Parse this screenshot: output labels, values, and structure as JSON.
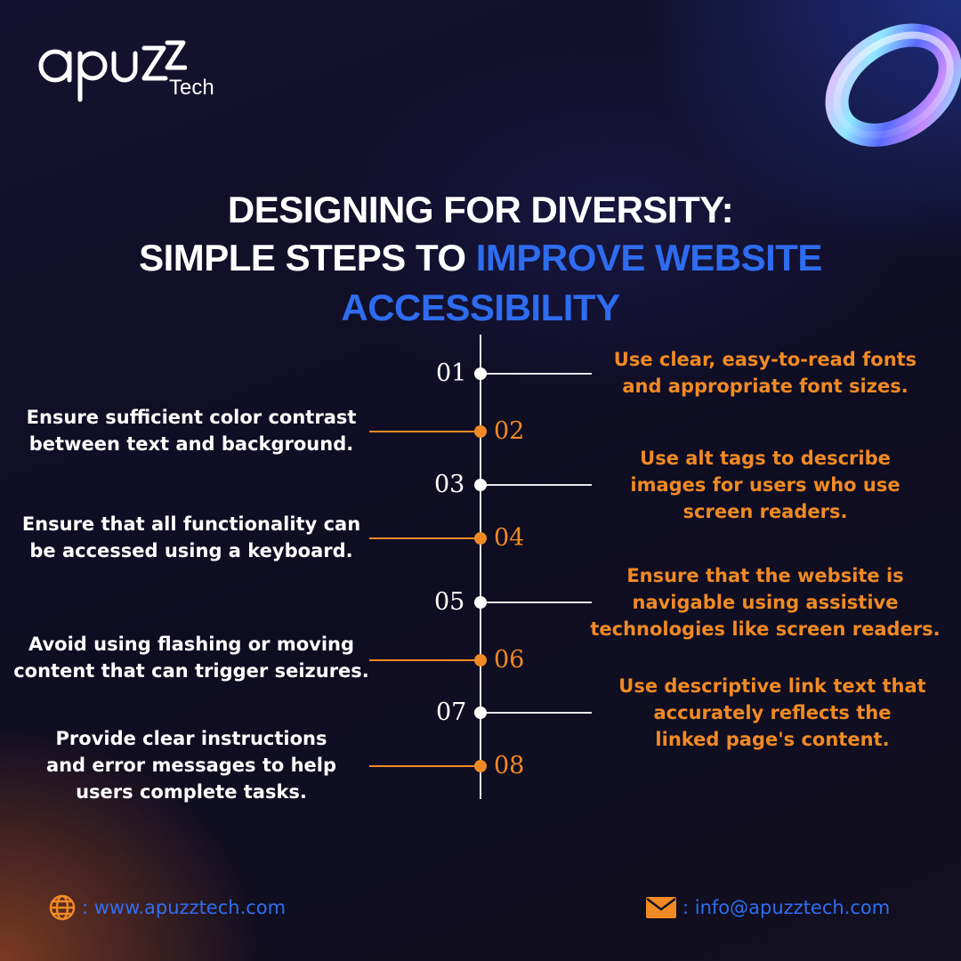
{
  "logo": {
    "wordmark": "apuzz",
    "sub": "Tech"
  },
  "headline": {
    "line1": "DESIGNING FOR DIVERSITY:",
    "line2_prefix": "SIMPLE STEPS TO ",
    "line2_accent": "IMPROVE WEBSITE ACCESSIBILITY"
  },
  "steps": [
    {
      "number": "01",
      "text": "Use clear, easy-to-read fonts\nand appropriate font sizes."
    },
    {
      "number": "02",
      "text": "Ensure sufficient color contrast\nbetween text and background."
    },
    {
      "number": "03",
      "text": "Use alt tags to describe\nimages for users who use\nscreen readers."
    },
    {
      "number": "04",
      "text": "Ensure that all functionality can\nbe accessed using a keyboard."
    },
    {
      "number": "05",
      "text": "Ensure that the website is\nnavigable using assistive\ntechnologies like screen readers."
    },
    {
      "number": "06",
      "text": "Avoid using flashing or moving\ncontent that can trigger seizures."
    },
    {
      "number": "07",
      "text": "Use descriptive link text that\naccurately reflects the\nlinked page's content."
    },
    {
      "number": "08",
      "text": "Provide clear instructions\nand error messages to help\nusers complete tasks."
    }
  ],
  "footer": {
    "website": ": www.apuzztech.com",
    "email": ": info@apuzztech.com"
  },
  "colors": {
    "accent_blue": "#2e6cf0",
    "accent_orange": "#f08a24",
    "background": "#0f0d22",
    "text_white": "#ffffff"
  },
  "icons": {
    "website": "globe-icon",
    "email": "envelope-icon",
    "decoration": "holographic-ring"
  }
}
